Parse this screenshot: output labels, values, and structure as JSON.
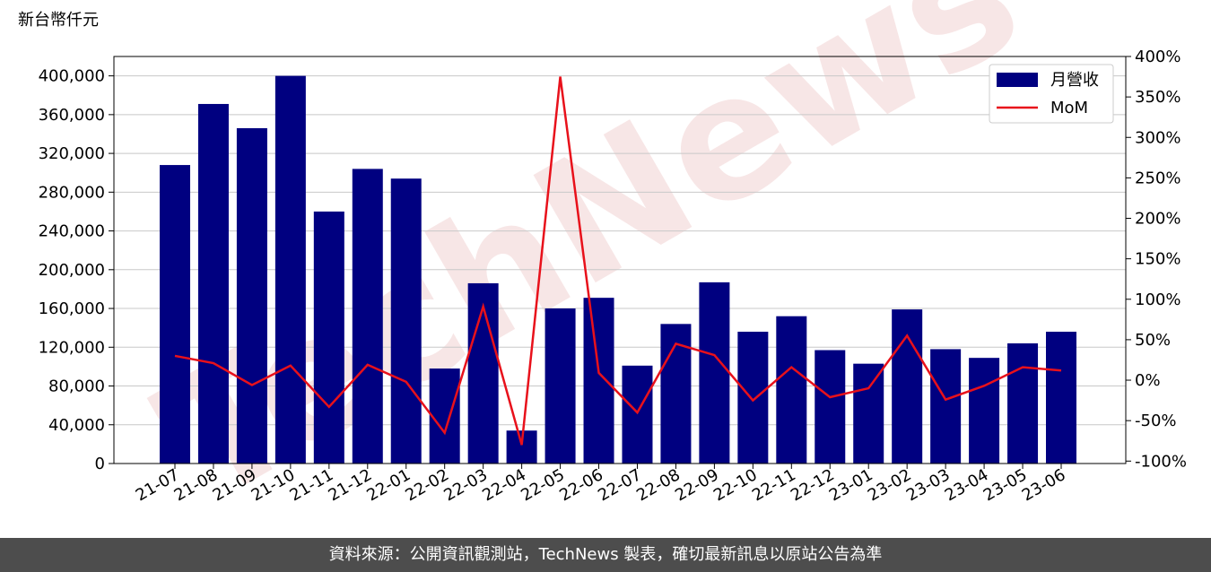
{
  "chart_data": {
    "type": "bar-line",
    "y_label": "新台幣仟元",
    "watermark": "TechNews",
    "footer": "資料來源：公開資訊觀測站，TechNews 製表，確切最新訊息以原站公告為準",
    "categories": [
      "21-07",
      "21-08",
      "21-09",
      "21-10",
      "21-11",
      "21-12",
      "22-01",
      "22-02",
      "22-03",
      "22-04",
      "22-05",
      "22-06",
      "22-07",
      "22-08",
      "22-09",
      "22-10",
      "22-11",
      "22-12",
      "23-01",
      "23-02",
      "23-03",
      "23-04",
      "23-05",
      "23-06"
    ],
    "series": [
      {
        "name": "月營收",
        "type": "bar",
        "color": "#000080",
        "values": [
          308000,
          371000,
          346000,
          400000,
          260000,
          304000,
          294000,
          98000,
          186000,
          34000,
          160000,
          171000,
          101000,
          144000,
          187000,
          136000,
          152000,
          117000,
          103000,
          159000,
          118000,
          109000,
          124000,
          136000
        ]
      },
      {
        "name": "MoM",
        "type": "line",
        "axis": "y2",
        "color": "#e8111b",
        "values": [
          30,
          21,
          -6,
          18,
          -33,
          19,
          -2,
          -65,
          91,
          -80,
          375,
          9,
          -40,
          45,
          31,
          -25,
          16,
          -21,
          -10,
          55,
          -24,
          -7,
          16,
          12
        ]
      }
    ],
    "ylim": [
      0,
      420000
    ],
    "yticks": [
      0,
      {
        "value": 40000,
        "label": "40,000"
      },
      {
        "value": 80000,
        "label": "80,000"
      },
      {
        "value": 120000,
        "label": "120,000"
      },
      {
        "value": 160000,
        "label": "160,000"
      },
      {
        "value": 200000,
        "label": "200,000"
      },
      {
        "value": 240000,
        "label": "240,000"
      },
      {
        "value": 280000,
        "label": "280,000"
      },
      {
        "value": 320000,
        "label": "320,000"
      },
      {
        "value": 360000,
        "label": "360,000"
      },
      {
        "value": 400000,
        "label": "400,000"
      }
    ],
    "y2lim": [
      -103,
      400
    ],
    "y2ticks": [
      {
        "value": -100,
        "label": "-100%"
      },
      {
        "value": -50,
        "label": "-50%"
      },
      {
        "value": 0,
        "label": "0%"
      },
      {
        "value": 50,
        "label": "50%"
      },
      {
        "value": 100,
        "label": "100%"
      },
      {
        "value": 150,
        "label": "150%"
      },
      {
        "value": 200,
        "label": "200%"
      },
      {
        "value": 250,
        "label": "250%"
      },
      {
        "value": 300,
        "label": "300%"
      },
      {
        "value": 350,
        "label": "350%"
      },
      {
        "value": 400,
        "label": "400%"
      }
    ],
    "grid": true,
    "legend": "upper right"
  }
}
